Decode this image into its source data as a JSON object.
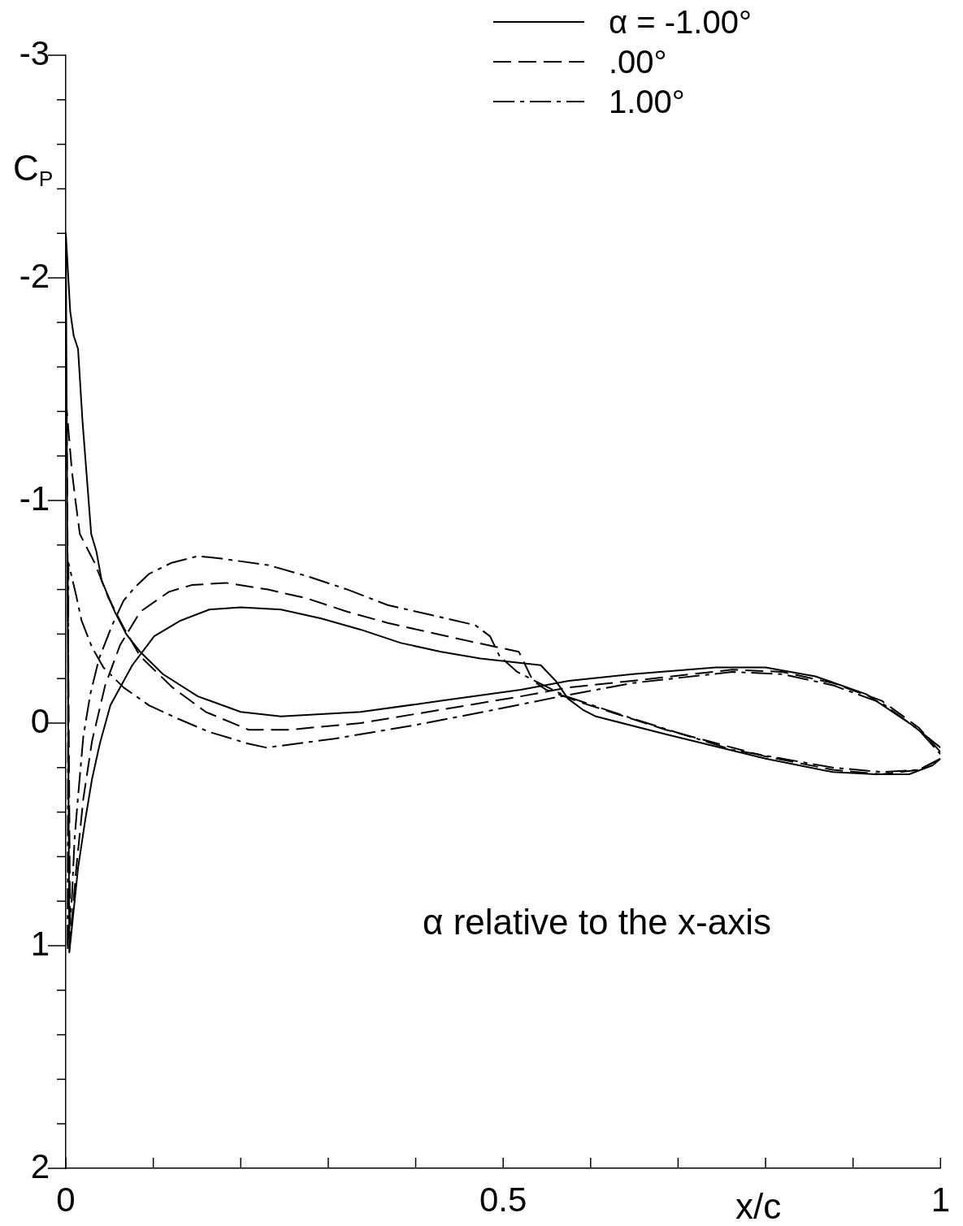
{
  "chart_data": {
    "type": "line",
    "xlabel": "x/c",
    "ylabel": "C$_{P}$",
    "legend": "top right",
    "annotations": [
      "α relative to the x-axis"
    ],
    "xlim": [
      0,
      1
    ],
    "ylim": [
      2,
      -3
    ],
    "xticks": [
      0,
      {
        "value": 0.1,
        "label": null
      },
      {
        "value": 0.2,
        "label": null
      },
      {
        "value": 0.3,
        "label": null
      },
      {
        "value": 0.4,
        "label": null
      },
      0.5,
      {
        "value": 0.6,
        "label": null
      },
      {
        "value": 0.7,
        "label": null
      },
      {
        "value": 0.8,
        "label": null
      },
      {
        "value": 0.9,
        "label": null
      },
      1
    ],
    "yticks": [
      -3,
      {
        "value": -2.8,
        "label": null
      },
      {
        "value": -2.6,
        "label": null
      },
      {
        "value": -2.4,
        "label": null
      },
      {
        "value": -2.2,
        "label": null
      },
      -2,
      {
        "value": -1.8,
        "label": null
      },
      {
        "value": -1.6,
        "label": null
      },
      {
        "value": -1.4,
        "label": null
      },
      {
        "value": -1.2,
        "label": null
      },
      -1,
      {
        "value": -0.8,
        "label": null
      },
      {
        "value": -0.6,
        "label": null
      },
      {
        "value": -0.4,
        "label": null
      },
      {
        "value": -0.2,
        "label": null
      },
      0,
      {
        "value": 0.2,
        "label": null
      },
      {
        "value": 0.4,
        "label": null
      },
      {
        "value": 0.6,
        "label": null
      },
      {
        "value": 0.8,
        "label": null
      },
      1,
      {
        "value": 1.2,
        "label": null
      },
      {
        "value": 1.4,
        "label": null
      },
      {
        "value": 1.6,
        "label": null
      },
      {
        "value": 1.8,
        "label": null
      },
      2
    ],
    "series": [
      {
        "name": "α = -1.00°",
        "color": "#000000",
        "line_style": "solid",
        "x": [
          1,
          0.991,
          0.964,
          0.926,
          0.877,
          0.8,
          0.686,
          0.606,
          0.591,
          0.574,
          0.56,
          0.543,
          0.474,
          0.429,
          0.383,
          0.337,
          0.292,
          0.246,
          0.2,
          0.164,
          0.131,
          0.101,
          0.076,
          0.051,
          0.039,
          0.03,
          0.022,
          0.014,
          0.004,
          0,
          0.005,
          0.009,
          0.014,
          0.019,
          0.029,
          0.035,
          0.041,
          0.056,
          0.069,
          0.085,
          0.111,
          0.151,
          0.2,
          0.246,
          0.337,
          0.429,
          0.52,
          0.575,
          0.648,
          0.743,
          0.8,
          0.857,
          0.915,
          0.968,
          1
        ],
        "values": [
          0.16,
          0.19,
          0.23,
          0.23,
          0.22,
          0.16,
          0.05,
          -0.03,
          -0.06,
          -0.11,
          -0.19,
          -0.26,
          -0.29,
          -0.32,
          -0.36,
          -0.42,
          -0.47,
          -0.51,
          -0.52,
          -0.51,
          -0.46,
          -0.39,
          -0.26,
          -0.08,
          0.09,
          0.25,
          0.44,
          0.65,
          1.03,
          -2.2,
          -1.85,
          -1.74,
          -1.68,
          -1.36,
          -0.85,
          -0.77,
          -0.64,
          -0.5,
          -0.4,
          -0.32,
          -0.22,
          -0.12,
          -0.05,
          -0.03,
          -0.05,
          -0.1,
          -0.15,
          -0.19,
          -0.22,
          -0.25,
          -0.25,
          -0.21,
          -0.13,
          0.01,
          0.11
        ]
      },
      {
        "name": ".00°",
        "color": "#000000",
        "line_style": "dashed",
        "x": [
          1,
          0.975,
          0.933,
          0.877,
          0.8,
          0.686,
          0.591,
          0.549,
          0.534,
          0.518,
          0.459,
          0.413,
          0.368,
          0.322,
          0.276,
          0.231,
          0.183,
          0.144,
          0.118,
          0.085,
          0.062,
          0.045,
          0.03,
          0.02,
          0.012,
          0.005,
          0.001,
          0.004,
          0.007,
          0.011,
          0.016,
          0.025,
          0.033,
          0.049,
          0.066,
          0.085,
          0.122,
          0.16,
          0.209,
          0.255,
          0.337,
          0.429,
          0.52,
          0.575,
          0.648,
          0.762,
          0.819,
          0.877,
          0.933,
          0.975,
          1
        ],
        "values": [
          0.16,
          0.21,
          0.23,
          0.21,
          0.15,
          0.03,
          -0.09,
          -0.15,
          -0.19,
          -0.32,
          -0.37,
          -0.41,
          -0.45,
          -0.5,
          -0.56,
          -0.6,
          -0.63,
          -0.62,
          -0.59,
          -0.5,
          -0.35,
          -0.17,
          0.08,
          0.34,
          0.65,
          0.98,
          -1.41,
          -1.27,
          -1.13,
          -1.0,
          -0.85,
          -0.78,
          -0.72,
          -0.56,
          -0.43,
          -0.3,
          -0.16,
          -0.05,
          0.03,
          0.03,
          0,
          -0.06,
          -0.12,
          -0.16,
          -0.19,
          -0.24,
          -0.23,
          -0.18,
          -0.1,
          0.02,
          0.13
        ]
      },
      {
        "name": "1.00°",
        "color": "#000000",
        "line_style": "dashdot",
        "x": [
          1,
          0.975,
          0.933,
          0.877,
          0.762,
          0.648,
          0.572,
          0.541,
          0.516,
          0.496,
          0.485,
          0.468,
          0.413,
          0.368,
          0.322,
          0.276,
          0.231,
          0.176,
          0.151,
          0.121,
          0.095,
          0.079,
          0.066,
          0.053,
          0.038,
          0.028,
          0.02,
          0.014,
          0.01,
          0.007,
          0.002,
          0.003,
          0.012,
          0.018,
          0.03,
          0.043,
          0.066,
          0.095,
          0.128,
          0.164,
          0.19,
          0.206,
          0.229,
          0.249,
          0.307,
          0.398,
          0.49,
          0.553,
          0.648,
          0.762,
          0.819,
          0.877,
          0.933,
          0.975,
          1
        ],
        "values": [
          0.16,
          0.21,
          0.22,
          0.2,
          0.12,
          -0.02,
          -0.12,
          -0.18,
          -0.23,
          -0.3,
          -0.39,
          -0.44,
          -0.49,
          -0.53,
          -0.6,
          -0.66,
          -0.71,
          -0.74,
          -0.75,
          -0.72,
          -0.67,
          -0.61,
          -0.55,
          -0.44,
          -0.29,
          -0.13,
          0.06,
          0.33,
          0.52,
          0.78,
          1.02,
          -0.72,
          -0.57,
          -0.46,
          -0.34,
          -0.25,
          -0.16,
          -0.08,
          -0.02,
          0.04,
          0.07,
          0.09,
          0.11,
          0.1,
          0.07,
          0.01,
          -0.06,
          -0.11,
          -0.18,
          -0.23,
          -0.22,
          -0.17,
          -0.09,
          0.03,
          0.14
        ]
      }
    ]
  }
}
